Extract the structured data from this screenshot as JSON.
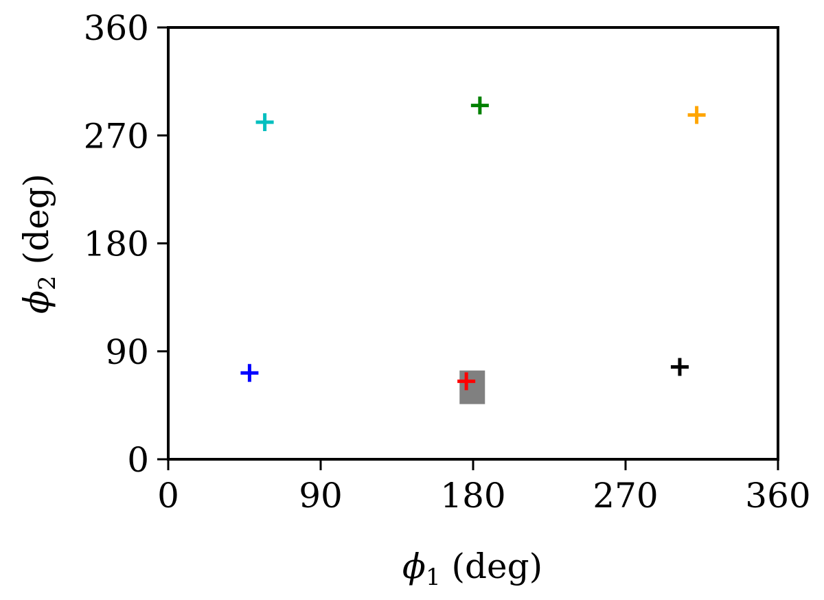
{
  "chart_data": {
    "type": "scatter",
    "marker": "plus",
    "xlabel": {
      "symbol": "ϕ",
      "sub": "1",
      "unit": " (deg)"
    },
    "ylabel": {
      "symbol": "ϕ",
      "sub": "2",
      "unit": " (deg)"
    },
    "xlim": [
      0,
      360
    ],
    "ylim": [
      0,
      360
    ],
    "xticks": [
      0,
      90,
      180,
      270,
      360
    ],
    "yticks": [
      0,
      90,
      180,
      270,
      360
    ],
    "xtick_labels": [
      "0",
      "90",
      "180",
      "270",
      "360"
    ],
    "ytick_labels": [
      "0",
      "90",
      "180",
      "270",
      "360"
    ],
    "grid": false,
    "points": [
      {
        "x": 48,
        "y": 72,
        "color": "#0000ff"
      },
      {
        "x": 57,
        "y": 281,
        "color": "#00bfbf"
      },
      {
        "x": 184,
        "y": 295,
        "color": "#008000"
      },
      {
        "x": 176,
        "y": 65,
        "color": "#ff0000"
      },
      {
        "x": 302,
        "y": 77,
        "color": "#000000"
      },
      {
        "x": 312,
        "y": 287,
        "color": "#ffa500"
      }
    ],
    "highlight": {
      "x": [
        172,
        187
      ],
      "y": [
        46,
        74
      ],
      "color": "#808080"
    }
  }
}
